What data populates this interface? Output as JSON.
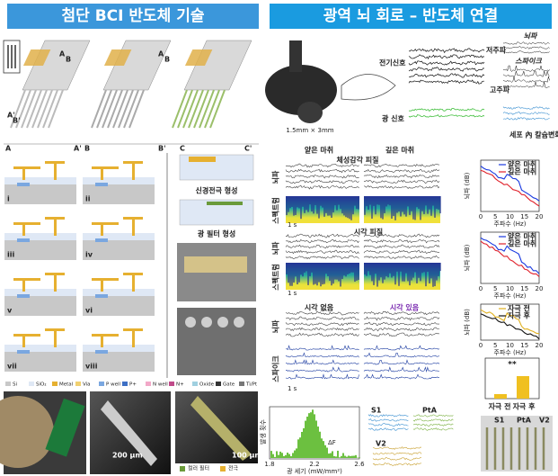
{
  "headers": {
    "left": "첨단 BCI 반도체 기술",
    "right": "광역 뇌 회로 – 반도체 연결"
  },
  "probe_labels": [
    "A",
    "B",
    "A'",
    "B'"
  ],
  "section_labels": [
    "A",
    "A'",
    "B",
    "B'",
    "C",
    "C'"
  ],
  "steps": [
    "i",
    "ii",
    "iii",
    "iv",
    "v",
    "vi",
    "vii",
    "viii"
  ],
  "legend": [
    "Si",
    "SiO₂",
    "Metal",
    "Via",
    "P well",
    "P+",
    "N well",
    "N+",
    "Oxide",
    "Gate",
    "Ti/Pt"
  ],
  "process_labels": [
    "신경전극 형성",
    "광 필터 형성"
  ],
  "scale_bars": [
    "200 μm",
    "100 μm"
  ],
  "photo_legend": [
    "컬러 필터",
    "전극"
  ],
  "overview": {
    "size": "1.5mm × 3mm",
    "electrical": "전기신호",
    "optical": "광 신호",
    "low": "저주파",
    "high": "고주파",
    "eeg": "뇌파",
    "spike": "스파이크",
    "calcium": "세포 內 칼슘변화"
  },
  "recordings": {
    "conditions": [
      "얕은 마취",
      "깊은 마취"
    ],
    "region1": "체성감각 피질",
    "region2": "시각 피질",
    "visual": [
      "시각 없음",
      "시각 있음"
    ],
    "rows": [
      "뇌파",
      "스펙트럼",
      "뇌파",
      "스펙트럼",
      "뇌파",
      "스파이크"
    ],
    "time_scale": "1 s"
  },
  "spectra": {
    "legend": [
      "얕은 마취",
      "깊은 마취"
    ],
    "stim_legend": [
      "자극 전",
      "자극 후"
    ],
    "xlabel": "주파수 (Hz)",
    "ylabel": "뇌파 (dB)",
    "xticks": [
      0,
      5,
      10,
      15,
      20
    ],
    "bar_categories": [
      "자극 전",
      "자극 후"
    ],
    "significance": "**"
  },
  "histogram": {
    "xlabel": "광 세기 (mW/mm²)",
    "ylabel": "발생 횟수",
    "xticks": [
      1.8,
      2.2,
      2.6
    ],
    "annotation": "ΔF"
  },
  "regions": [
    "S1",
    "PtA",
    "V2"
  ]
}
